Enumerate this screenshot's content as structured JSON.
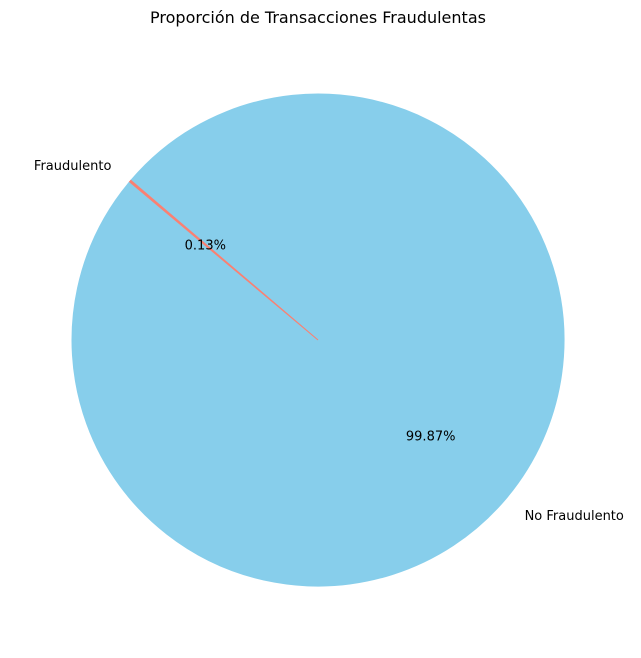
{
  "chart_data": {
    "type": "pie",
    "title": "Proporción de Transacciones Fraudulentas",
    "slices": [
      {
        "label": "No Fraudulento",
        "value": 99.87,
        "pct_label": "99.87%",
        "color": "#87ceeb"
      },
      {
        "label": "Fraudulento",
        "value": 0.13,
        "pct_label": "0.13%",
        "color": "#fa8072"
      }
    ],
    "startangle_deg": 140,
    "legend": "none"
  }
}
